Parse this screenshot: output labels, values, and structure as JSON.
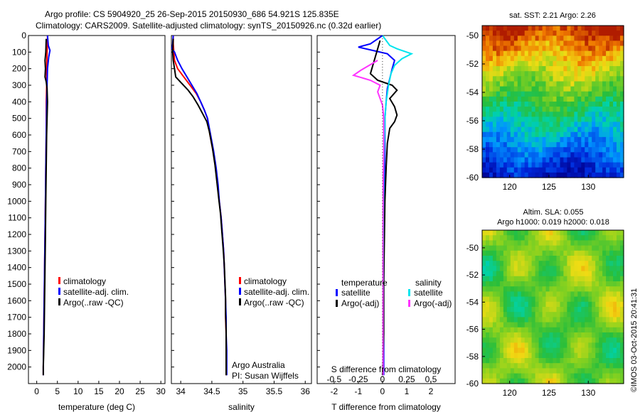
{
  "header": {
    "line1": "Argo profile: CS 5904920_25 26-Sep-2015 20150930_686 54.921S 125.835E",
    "line2": "Climatology: CARS2009. Satellite-adjusted climatology: synTS_20150926.nc (0.32d earlier)"
  },
  "colors": {
    "climatology": "#ff0000",
    "satellite": "#0000ff",
    "argo": "#000000",
    "salinity_satellite": "#00e5ee",
    "salinity_argo": "#ff33ff"
  },
  "chart_data": [
    {
      "type": "line",
      "id": "temperature",
      "xlabel": "temperature (deg C)",
      "xlim": [
        -2,
        31
      ],
      "xticks": [
        0,
        5,
        10,
        15,
        20,
        25,
        30
      ],
      "ylim": [
        2100,
        0
      ],
      "yticks": [
        0,
        100,
        200,
        300,
        400,
        500,
        600,
        700,
        800,
        900,
        1000,
        1100,
        1200,
        1300,
        1400,
        1500,
        1600,
        1700,
        1800,
        1900,
        2000
      ],
      "legend": [
        "climatology",
        "satellite-adj. clim.",
        "Argo(..raw -QC)"
      ],
      "series": [
        {
          "name": "climatology",
          "color": "#ff0000",
          "points": [
            [
              2.6,
              0
            ],
            [
              2.6,
              50
            ],
            [
              2.5,
              100
            ],
            [
              2.4,
              200
            ],
            [
              2.4,
              300
            ],
            [
              2.3,
              400
            ],
            [
              2.3,
              600
            ],
            [
              2.2,
              800
            ],
            [
              2.1,
              1000
            ],
            [
              2.0,
              1200
            ],
            [
              1.9,
              1400
            ],
            [
              1.8,
              1600
            ],
            [
              1.7,
              1800
            ],
            [
              1.6,
              2000
            ],
            [
              1.6,
              2050
            ]
          ]
        },
        {
          "name": "satellite-adj. clim.",
          "color": "#0000ff",
          "points": [
            [
              2.6,
              0
            ],
            [
              2.8,
              60
            ],
            [
              3.2,
              90
            ],
            [
              2.9,
              130
            ],
            [
              2.6,
              200
            ],
            [
              2.5,
              300
            ],
            [
              2.4,
              400
            ],
            [
              2.3,
              600
            ],
            [
              2.2,
              800
            ],
            [
              2.1,
              1000
            ],
            [
              2.0,
              1200
            ],
            [
              1.9,
              1400
            ],
            [
              1.8,
              1600
            ],
            [
              1.7,
              1800
            ],
            [
              1.6,
              2000
            ],
            [
              1.6,
              2050
            ]
          ]
        },
        {
          "name": "Argo(..raw -QC)",
          "color": "#000000",
          "points": [
            [
              2.3,
              20
            ],
            [
              2.2,
              100
            ],
            [
              2.0,
              150
            ],
            [
              2.1,
              200
            ],
            [
              2.0,
              250
            ],
            [
              2.3,
              280
            ],
            [
              2.5,
              320
            ],
            [
              2.6,
              400
            ],
            [
              2.5,
              500
            ],
            [
              2.4,
              600
            ],
            [
              2.3,
              800
            ],
            [
              2.2,
              1000
            ],
            [
              2.1,
              1200
            ],
            [
              2.0,
              1400
            ],
            [
              1.9,
              1600
            ],
            [
              1.8,
              1800
            ],
            [
              1.6,
              2000
            ],
            [
              1.6,
              2050
            ]
          ]
        }
      ]
    },
    {
      "type": "line",
      "id": "salinity",
      "xlabel": "salinity",
      "xlim": [
        33.85,
        36.1
      ],
      "xticks": [
        34,
        34.5,
        35,
        35.5,
        36
      ],
      "ylim": [
        2100,
        0
      ],
      "legend": [
        "climatology",
        "satellite-adj. clim.",
        "Argo(..raw -QC)"
      ],
      "annotation": [
        "Argo Australia",
        "PI: Susan Wijffels"
      ],
      "series": [
        {
          "name": "climatology",
          "color": "#ff0000",
          "points": [
            [
              33.88,
              0
            ],
            [
              33.88,
              50
            ],
            [
              33.89,
              100
            ],
            [
              33.9,
              150
            ],
            [
              33.95,
              200
            ],
            [
              34.05,
              250
            ],
            [
              34.15,
              300
            ],
            [
              34.25,
              350
            ],
            [
              34.32,
              400
            ],
            [
              34.38,
              450
            ],
            [
              34.43,
              500
            ],
            [
              34.47,
              600
            ],
            [
              34.52,
              700
            ],
            [
              34.56,
              800
            ],
            [
              34.59,
              900
            ],
            [
              34.62,
              1000
            ],
            [
              34.65,
              1100
            ],
            [
              34.67,
              1200
            ],
            [
              34.69,
              1300
            ],
            [
              34.7,
              1400
            ],
            [
              34.71,
              1500
            ],
            [
              34.72,
              1600
            ],
            [
              34.72,
              1700
            ],
            [
              34.73,
              1800
            ],
            [
              34.73,
              1900
            ],
            [
              34.73,
              2000
            ],
            [
              34.73,
              2050
            ]
          ]
        },
        {
          "name": "satellite-adj. clim.",
          "color": "#0000ff",
          "points": [
            [
              33.88,
              0
            ],
            [
              33.87,
              50
            ],
            [
              33.86,
              80
            ],
            [
              33.9,
              100
            ],
            [
              33.95,
              150
            ],
            [
              34.02,
              200
            ],
            [
              34.1,
              250
            ],
            [
              34.18,
              300
            ],
            [
              34.26,
              350
            ],
            [
              34.32,
              400
            ],
            [
              34.38,
              450
            ],
            [
              34.43,
              500
            ],
            [
              34.48,
              600
            ],
            [
              34.53,
              700
            ],
            [
              34.57,
              800
            ],
            [
              34.6,
              900
            ],
            [
              34.62,
              1000
            ],
            [
              34.65,
              1100
            ],
            [
              34.67,
              1200
            ],
            [
              34.69,
              1300
            ],
            [
              34.7,
              1400
            ],
            [
              34.71,
              1500
            ],
            [
              34.72,
              1600
            ],
            [
              34.73,
              1700
            ],
            [
              34.73,
              1800
            ],
            [
              34.74,
              1900
            ],
            [
              34.74,
              2000
            ],
            [
              34.74,
              2050
            ]
          ]
        },
        {
          "name": "Argo(..raw -QC)",
          "color": "#000000",
          "points": [
            [
              33.88,
              20
            ],
            [
              33.87,
              100
            ],
            [
              33.88,
              150
            ],
            [
              33.9,
              200
            ],
            [
              33.92,
              250
            ],
            [
              34.02,
              290
            ],
            [
              34.12,
              330
            ],
            [
              34.2,
              370
            ],
            [
              34.28,
              420
            ],
            [
              34.35,
              470
            ],
            [
              34.42,
              520
            ],
            [
              34.46,
              580
            ],
            [
              34.51,
              680
            ],
            [
              34.55,
              780
            ],
            [
              34.58,
              880
            ],
            [
              34.61,
              980
            ],
            [
              34.64,
              1080
            ],
            [
              34.66,
              1180
            ],
            [
              34.68,
              1280
            ],
            [
              34.7,
              1380
            ],
            [
              34.71,
              1480
            ],
            [
              34.72,
              1580
            ],
            [
              34.72,
              1680
            ],
            [
              34.73,
              1780
            ],
            [
              34.73,
              1880
            ],
            [
              34.73,
              1980
            ],
            [
              34.73,
              2050
            ]
          ]
        }
      ]
    },
    {
      "type": "line",
      "id": "difference",
      "xlabel": "T difference from climatology",
      "x2label": "S difference from climatology",
      "xlim": [
        -2.7,
        3.0
      ],
      "xticks": [
        -2,
        -1,
        0,
        1,
        2
      ],
      "x2ticks": [
        {
          "label": "-0.5",
          "t": -2.0
        },
        {
          "label": "-0.25",
          "t": -1.0
        },
        {
          "label": "0",
          "t": 0
        },
        {
          "label": "0.25",
          "t": 1.0
        },
        {
          "label": "0.5",
          "t": 2.0
        }
      ],
      "ylim": [
        2100,
        0
      ],
      "legend_titles": [
        "temperature",
        "salinity"
      ],
      "legend": [
        "satellite",
        "Argo(-adj)",
        "satellite",
        "Argo(-adj)"
      ],
      "series": [
        {
          "name": "satellite",
          "color": "#0000ff",
          "points": [
            [
              0,
              0
            ],
            [
              -0.5,
              50
            ],
            [
              -1.0,
              70
            ],
            [
              -0.4,
              90
            ],
            [
              0.2,
              110
            ],
            [
              0.5,
              150
            ],
            [
              0.4,
              200
            ],
            [
              0.3,
              260
            ],
            [
              0.2,
              320
            ],
            [
              0.15,
              400
            ],
            [
              0.1,
              500
            ],
            [
              0.1,
              700
            ],
            [
              0.08,
              900
            ],
            [
              0.06,
              1200
            ],
            [
              0.05,
              1500
            ],
            [
              0.05,
              1800
            ],
            [
              0.05,
              2050
            ]
          ]
        },
        {
          "name": "Argo(-adj)",
          "color": "#000000",
          "points": [
            [
              -0.1,
              30
            ],
            [
              -0.2,
              80
            ],
            [
              -0.3,
              130
            ],
            [
              -0.4,
              180
            ],
            [
              -0.5,
              230
            ],
            [
              -0.2,
              270
            ],
            [
              0.4,
              300
            ],
            [
              0.6,
              330
            ],
            [
              0.3,
              380
            ],
            [
              0.5,
              430
            ],
            [
              0.6,
              480
            ],
            [
              0.5,
              520
            ],
            [
              0.3,
              560
            ],
            [
              0.2,
              650
            ],
            [
              0.15,
              800
            ],
            [
              0.1,
              1000
            ],
            [
              0.08,
              1200
            ],
            [
              0.05,
              1500
            ],
            [
              0.05,
              1800
            ],
            [
              0.0,
              2050
            ]
          ]
        },
        {
          "name": "satellite",
          "color": "#00e5ee",
          "points": [
            [
              0,
              0
            ],
            [
              0.3,
              60
            ],
            [
              0.6,
              80
            ],
            [
              1.2,
              110
            ],
            [
              0.8,
              140
            ],
            [
              0.5,
              180
            ],
            [
              0.35,
              230
            ],
            [
              0.25,
              300
            ],
            [
              0.15,
              400
            ],
            [
              0.1,
              500
            ],
            [
              0.08,
              650
            ],
            [
              0.05,
              800
            ],
            [
              0.04,
              1000
            ],
            [
              0.03,
              1300
            ],
            [
              0.02,
              1600
            ],
            [
              0.02,
              2050
            ]
          ]
        },
        {
          "name": "Argo(-adj)",
          "color": "#ff33ff",
          "points": [
            [
              -0.2,
              150
            ],
            [
              -0.9,
              210
            ],
            [
              -1.2,
              240
            ],
            [
              -0.5,
              270
            ],
            [
              -0.1,
              300
            ],
            [
              -0.2,
              340
            ],
            [
              -0.1,
              380
            ],
            [
              0,
              420
            ],
            [
              0.05,
              500
            ],
            [
              0.05,
              700
            ],
            [
              0.03,
              900
            ],
            [
              0.02,
              1200
            ],
            [
              0.02,
              1500
            ],
            [
              0.02,
              1800
            ],
            [
              0.02,
              2050
            ]
          ]
        }
      ]
    },
    {
      "type": "heatmap",
      "id": "sst_map",
      "title": "sat. SST: 2.21 Argo: 2.26",
      "xticks": [
        120,
        125,
        130
      ],
      "yticks": [
        -50,
        -52,
        -54,
        -56,
        -58,
        -60
      ],
      "xlim": [
        116.5,
        134.5
      ],
      "ylim": [
        -60,
        -49.3
      ]
    },
    {
      "type": "heatmap",
      "id": "sla_map",
      "title": "Altim. SLA: 0.055",
      "subtitle": "Argo h1000: 0.019 h2000: 0.018",
      "xticks": [
        120,
        125,
        130
      ],
      "yticks": [
        -50,
        -52,
        -54,
        -56,
        -58,
        -60
      ],
      "xlim": [
        116.5,
        134.5
      ],
      "ylim": [
        -60,
        -48.7
      ]
    }
  ],
  "watermark": "©IMOS 03-Oct-2015 20:41:31"
}
